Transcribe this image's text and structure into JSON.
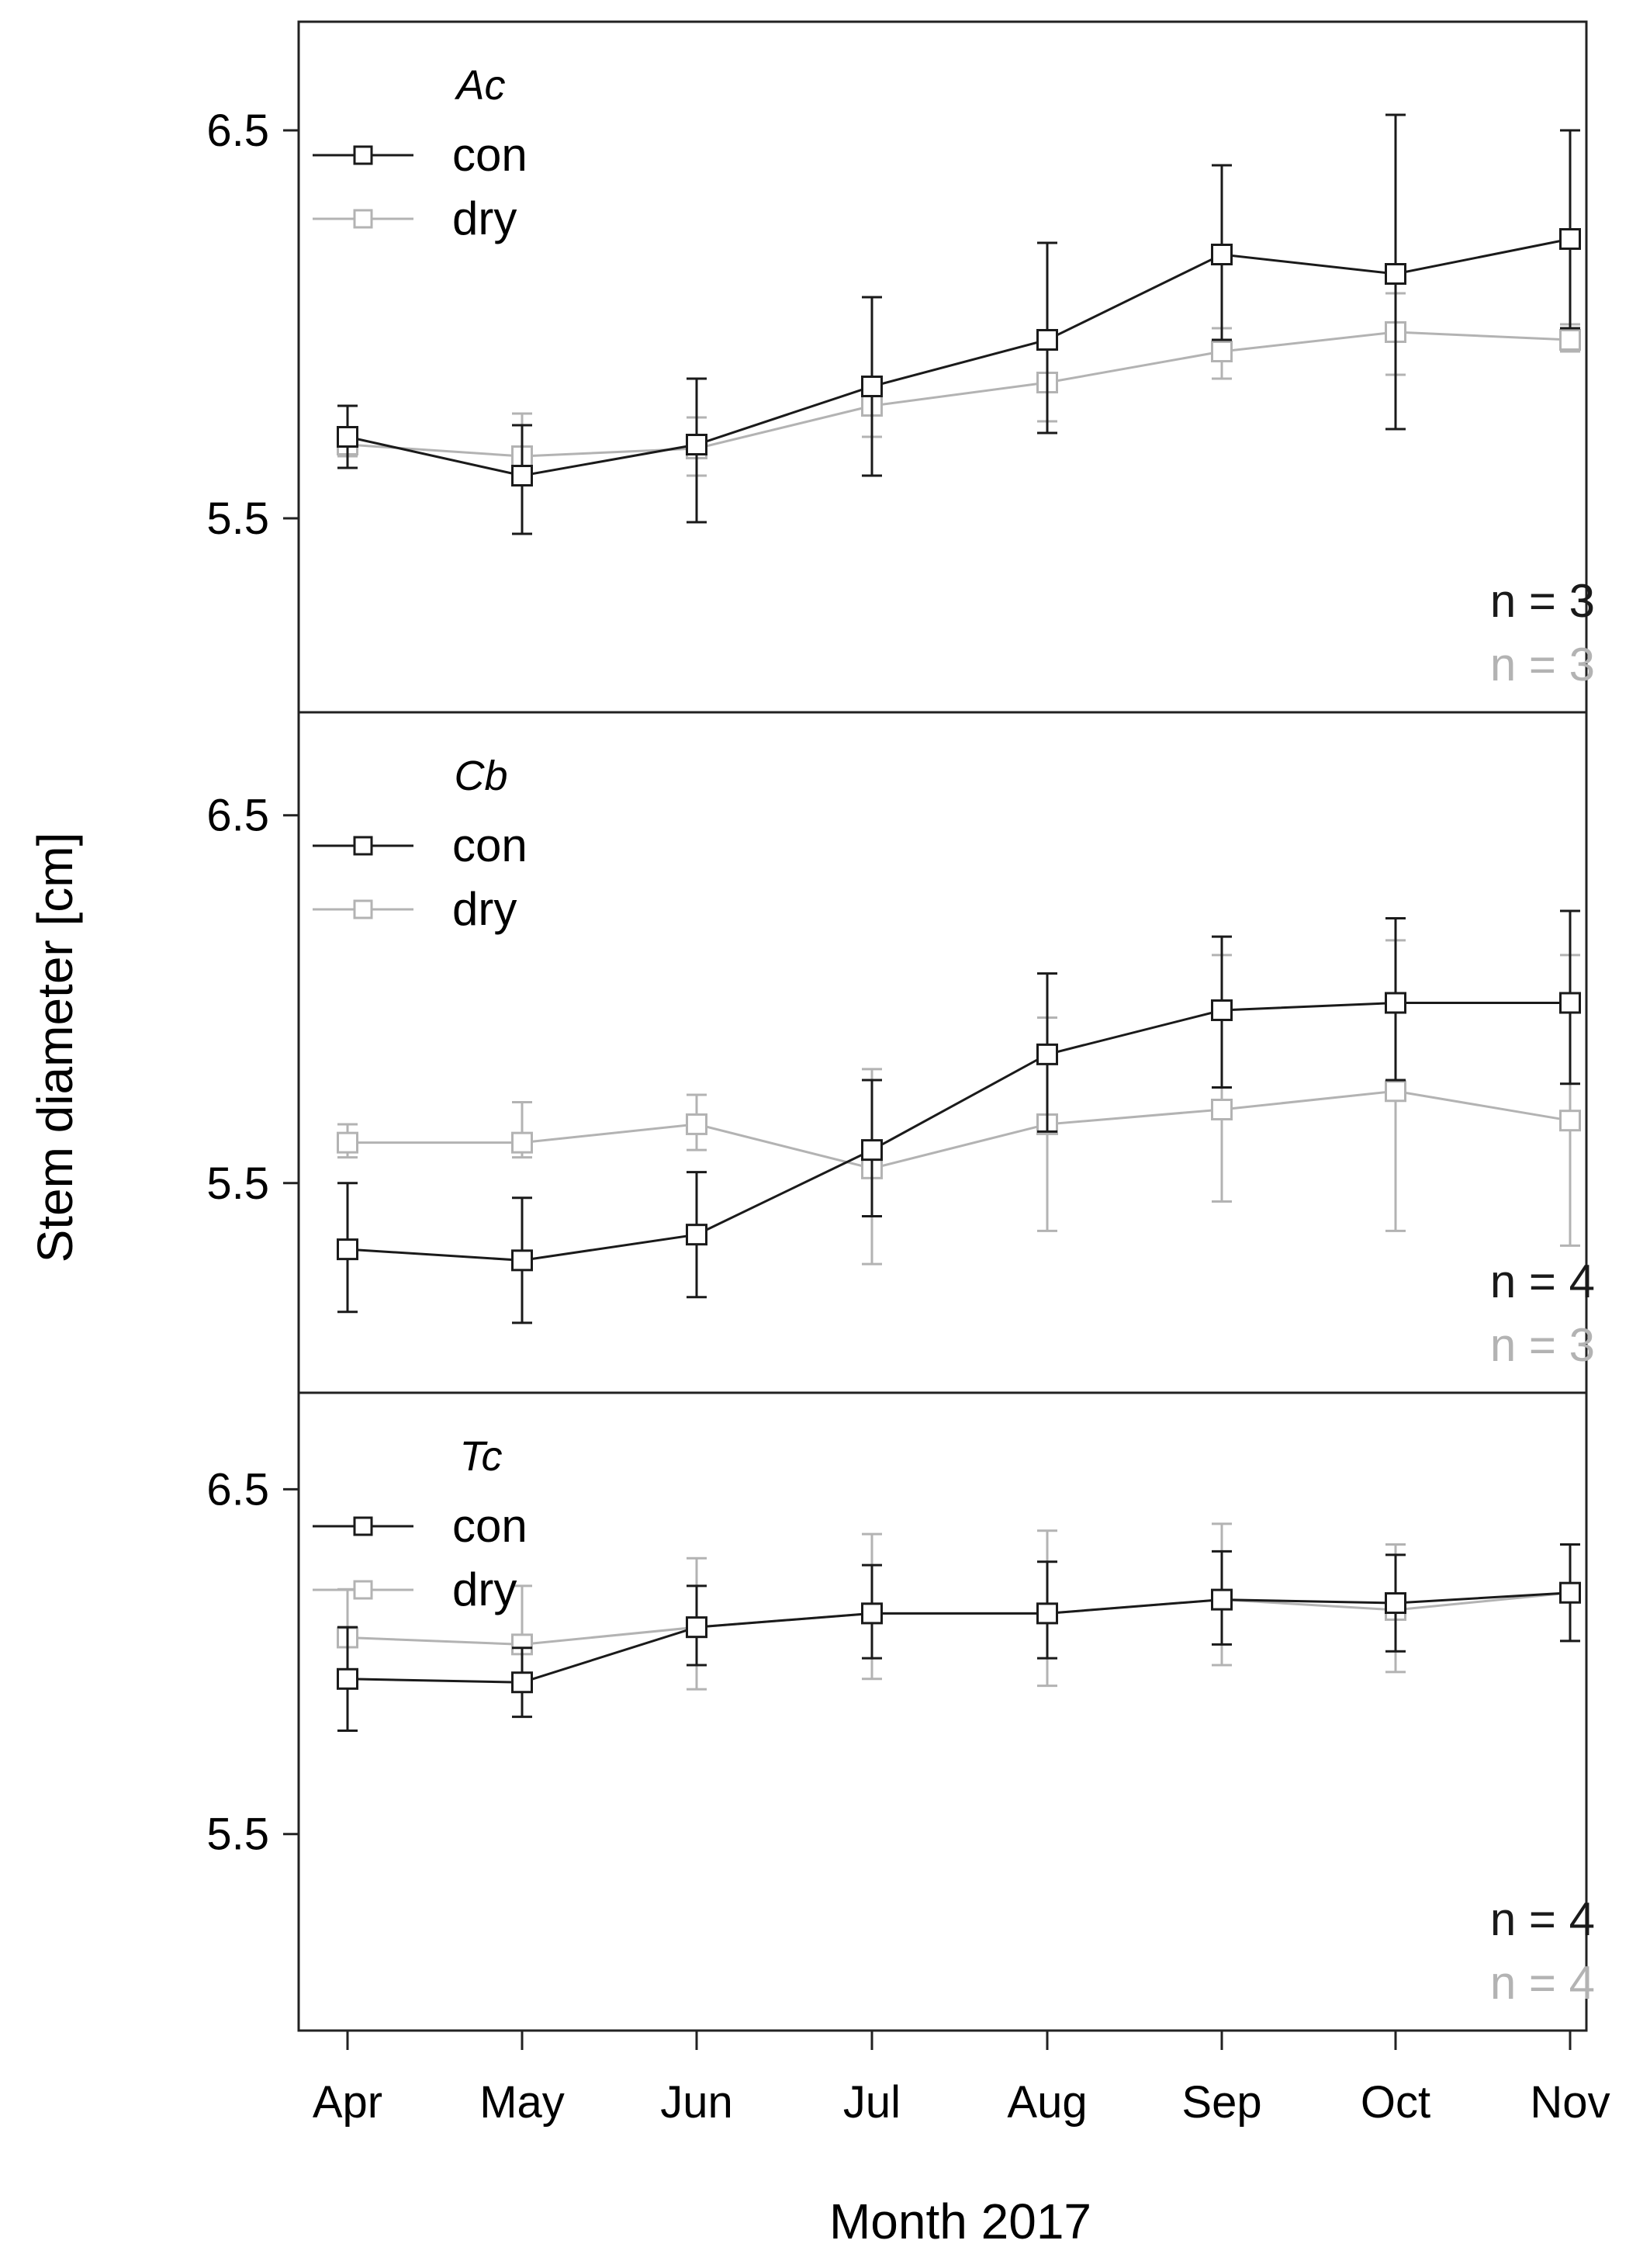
{
  "figure": {
    "ylabel": "Stem diameter [cm]",
    "xlabel": "Month 2017"
  },
  "colors": {
    "con": "#1a1a1a",
    "dry": "#b3b3b3",
    "frame": "#222222"
  },
  "chart_data": [
    {
      "type": "line",
      "title": "Ac",
      "categories": [
        "Apr",
        "May",
        "Jun",
        "Jul",
        "Aug",
        "Sep",
        "Oct",
        "Nov"
      ],
      "yticks": [
        "5.5",
        "6.5"
      ],
      "ylim": [
        5.0,
        6.78
      ],
      "legend": [
        "con",
        "dry"
      ],
      "legend_position": "top-left",
      "series": [
        {
          "name": "con",
          "values": [
            5.71,
            5.61,
            5.69,
            5.84,
            5.96,
            6.18,
            6.13,
            6.22
          ],
          "lower": [
            5.63,
            5.46,
            5.49,
            5.61,
            5.72,
            5.96,
            5.73,
            5.99
          ],
          "upper": [
            5.79,
            5.74,
            5.86,
            6.07,
            6.21,
            6.41,
            6.54,
            6.5
          ]
        },
        {
          "name": "dry",
          "values": [
            5.69,
            5.66,
            5.68,
            5.79,
            5.85,
            5.93,
            5.98,
            5.96
          ],
          "lower": [
            5.66,
            5.6,
            5.61,
            5.71,
            5.75,
            5.86,
            5.87,
            5.93
          ],
          "upper": [
            5.72,
            5.77,
            5.76,
            5.86,
            5.94,
            5.99,
            6.08,
            6.0
          ]
        }
      ],
      "annotations": [
        "n = 3",
        "n = 3"
      ]
    },
    {
      "type": "line",
      "title": "Cb",
      "categories": [
        "Apr",
        "May",
        "Jun",
        "Jul",
        "Aug",
        "Sep",
        "Oct",
        "Nov"
      ],
      "yticks": [
        "5.5",
        "6.5"
      ],
      "ylim": [
        4.93,
        6.78
      ],
      "legend": [
        "con",
        "dry"
      ],
      "legend_position": "top-left",
      "series": [
        {
          "name": "con",
          "values": [
            5.32,
            5.29,
            5.36,
            5.59,
            5.85,
            5.97,
            5.99,
            5.99
          ],
          "lower": [
            5.15,
            5.12,
            5.19,
            5.41,
            5.64,
            5.76,
            5.78,
            5.77
          ],
          "upper": [
            5.5,
            5.46,
            5.53,
            5.78,
            6.07,
            6.17,
            6.22,
            6.24
          ]
        },
        {
          "name": "dry",
          "values": [
            5.61,
            5.61,
            5.66,
            5.54,
            5.66,
            5.7,
            5.75,
            5.67
          ],
          "lower": [
            5.57,
            5.57,
            5.59,
            5.28,
            5.37,
            5.45,
            5.37,
            5.33
          ],
          "upper": [
            5.66,
            5.72,
            5.74,
            5.81,
            5.95,
            6.12,
            6.16,
            6.12
          ]
        }
      ],
      "annotations": [
        "n = 4",
        "n = 3"
      ]
    },
    {
      "type": "line",
      "title": "Tc",
      "categories": [
        "Apr",
        "May",
        "Jun",
        "Jul",
        "Aug",
        "Sep",
        "Oct",
        "Nov"
      ],
      "yticks": [
        "5.5",
        "6.5"
      ],
      "ylim": [
        4.93,
        6.78
      ],
      "legend": [
        "con",
        "dry"
      ],
      "legend_position": "top-left",
      "series": [
        {
          "name": "con",
          "values": [
            5.95,
            5.94,
            6.1,
            6.14,
            6.14,
            6.18,
            6.17,
            6.2
          ],
          "lower": [
            5.8,
            5.84,
            5.99,
            6.01,
            6.01,
            6.05,
            6.03,
            6.06
          ],
          "upper": [
            6.1,
            6.04,
            6.22,
            6.28,
            6.29,
            6.32,
            6.31,
            6.34
          ]
        },
        {
          "name": "dry",
          "values": [
            6.07,
            6.05,
            6.1,
            6.14,
            6.14,
            6.18,
            6.15,
            6.2
          ],
          "lower": [
            5.94,
            5.94,
            5.92,
            5.95,
            5.93,
            5.99,
            5.97,
            6.06
          ],
          "upper": [
            6.21,
            6.22,
            6.3,
            6.37,
            6.38,
            6.4,
            6.34,
            6.34
          ]
        }
      ],
      "annotations": [
        "n = 4",
        "n = 4"
      ]
    }
  ]
}
